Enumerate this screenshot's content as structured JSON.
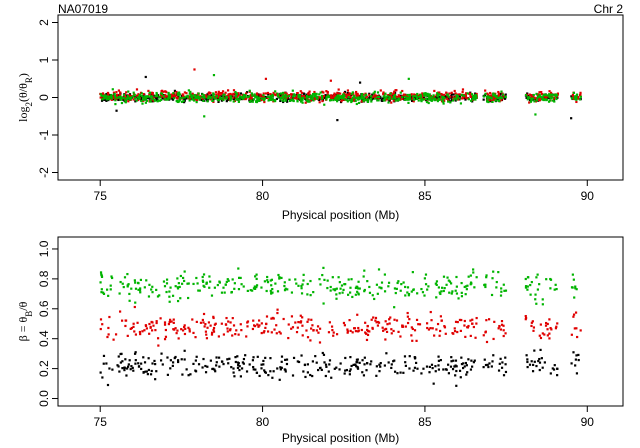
{
  "header": {
    "sample": "NA07019",
    "chromosome": "Chr 2"
  },
  "colors": {
    "black": "#000000",
    "red": "#e00000",
    "green": "#00b400"
  },
  "chart_data": [
    {
      "type": "scatter",
      "panel": "log ratio",
      "xlabel": "Physical position (Mb)",
      "ylabel_parts": {
        "prefix": "log",
        "sub1": "2",
        "mid": "(θ/θ",
        "sub2": "R",
        "suffix": ")"
      },
      "xlim": [
        73.7,
        91.1
      ],
      "ylim": [
        -2.2,
        2.2
      ],
      "x_ticks": [
        75,
        80,
        85,
        90
      ],
      "y_ticks": [
        -2,
        -1,
        0,
        1,
        2
      ],
      "grid": false,
      "segments": [
        [
          75.0,
          78.7
        ],
        [
          78.7,
          81.3
        ],
        [
          81.3,
          83.9
        ],
        [
          83.9,
          86.6
        ],
        [
          86.8,
          87.5
        ],
        [
          88.1,
          89.1
        ],
        [
          89.5,
          89.8
        ]
      ],
      "gap_range": [
        87.6,
        88.0
      ],
      "series": [
        {
          "color": "black",
          "mean": 0.0,
          "spread": 0.07
        },
        {
          "color": "red",
          "mean": 0.03,
          "spread": 0.09
        },
        {
          "color": "green",
          "mean": 0.0,
          "spread": 0.09
        }
      ],
      "outliers": [
        {
          "x": 76.4,
          "y": 0.55,
          "color": "black"
        },
        {
          "x": 77.9,
          "y": 0.75,
          "color": "red"
        },
        {
          "x": 78.5,
          "y": 0.6,
          "color": "green"
        },
        {
          "x": 80.1,
          "y": 0.5,
          "color": "red"
        },
        {
          "x": 82.1,
          "y": 0.45,
          "color": "red"
        },
        {
          "x": 82.3,
          "y": -0.6,
          "color": "black"
        },
        {
          "x": 84.5,
          "y": 0.5,
          "color": "green"
        },
        {
          "x": 83.0,
          "y": 0.4,
          "color": "black"
        },
        {
          "x": 78.2,
          "y": -0.5,
          "color": "green"
        },
        {
          "x": 88.4,
          "y": -0.45,
          "color": "green"
        },
        {
          "x": 89.5,
          "y": -0.55,
          "color": "black"
        },
        {
          "x": 75.5,
          "y": -0.35,
          "color": "black"
        }
      ]
    },
    {
      "type": "scatter",
      "panel": "B allele frequency",
      "xlabel": "Physical position (Mb)",
      "ylabel_parts": {
        "pre": "β = θ",
        "sub": "B",
        "post": "/θ"
      },
      "xlim": [
        73.7,
        91.1
      ],
      "ylim": [
        -0.05,
        1.08
      ],
      "x_ticks": [
        75,
        80,
        85,
        90
      ],
      "y_ticks": [
        0.0,
        0.2,
        0.4,
        0.6,
        0.8,
        1.0
      ],
      "grid": false,
      "segments": [
        [
          75.0,
          78.7
        ],
        [
          78.7,
          81.3
        ],
        [
          81.3,
          83.9
        ],
        [
          83.9,
          86.6
        ],
        [
          86.8,
          87.5
        ],
        [
          88.1,
          89.1
        ],
        [
          89.5,
          89.8
        ]
      ],
      "gap_range": [
        87.6,
        88.0
      ],
      "series": [
        {
          "color": "green",
          "mean": 0.75,
          "spread": 0.06
        },
        {
          "color": "red",
          "mean": 0.48,
          "spread": 0.06
        },
        {
          "color": "black",
          "mean": 0.22,
          "spread": 0.06
        }
      ]
    }
  ]
}
